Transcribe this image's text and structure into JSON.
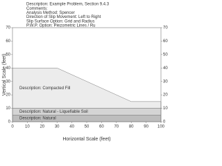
{
  "chart_data": {
    "type": "slope",
    "header": [
      "Description: Example Problem, Section 9.4.3",
      "Comments:",
      "Analysis Method: Spencer",
      "Direction of Slip Movement: Left to Right",
      "Slip Surface Option: Grid and Radius",
      "P.W.P. Option: Piezometric Lines / Ru"
    ],
    "xlabel": "Horizontal Scale (feet)",
    "ylabel": "Vertical Scale (feet)",
    "xlim": [
      0,
      100
    ],
    "ylim": [
      0,
      70
    ],
    "xticks": [
      0,
      10,
      20,
      30,
      40,
      50,
      60,
      70,
      80,
      90,
      100
    ],
    "yticks": [
      0,
      10,
      20,
      30,
      40,
      50,
      60,
      70
    ],
    "regions": [
      {
        "name": "Description: Compacted Fill",
        "color": "#ececec",
        "x": [
          0,
          30,
          80,
          100,
          100,
          0
        ],
        "y": [
          40,
          40,
          15,
          15,
          10,
          10
        ]
      },
      {
        "name": "Description: Natural - Liquefiable Soil",
        "color": "#d4d4d4",
        "x": [
          0,
          100,
          100,
          0
        ],
        "y": [
          10,
          10,
          5,
          5
        ]
      },
      {
        "name": "Description: Natural",
        "color": "#bdbdbd",
        "x": [
          0,
          100,
          100,
          0
        ],
        "y": [
          5,
          5,
          0,
          0
        ]
      }
    ]
  }
}
